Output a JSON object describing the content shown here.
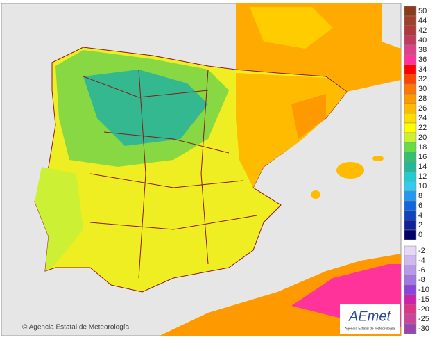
{
  "legend": {
    "positive": [
      {
        "label": "50",
        "color": "#8b3a1a"
      },
      {
        "label": "44",
        "color": "#a0402a"
      },
      {
        "label": "42",
        "color": "#b03a3a"
      },
      {
        "label": "40",
        "color": "#c03c5c"
      },
      {
        "label": "38",
        "color": "#e0408a"
      },
      {
        "label": "36",
        "color": "#ff3399"
      },
      {
        "label": "34",
        "color": "#ff0000"
      },
      {
        "label": "32",
        "color": "#ff4400"
      },
      {
        "label": "30",
        "color": "#ff7700"
      },
      {
        "label": "28",
        "color": "#ff9900"
      },
      {
        "label": "26",
        "color": "#ffbb00"
      },
      {
        "label": "24",
        "color": "#ffdd00"
      },
      {
        "label": "22",
        "color": "#ffff00"
      },
      {
        "label": "20",
        "color": "#ccf033"
      },
      {
        "label": "18",
        "color": "#66dd44"
      },
      {
        "label": "16",
        "color": "#33c070"
      },
      {
        "label": "14",
        "color": "#22b89a"
      },
      {
        "label": "12",
        "color": "#22cccc"
      },
      {
        "label": "10",
        "color": "#33ccee"
      },
      {
        "label": "8",
        "color": "#2299ee"
      },
      {
        "label": "6",
        "color": "#1166dd"
      },
      {
        "label": "4",
        "color": "#1144bb"
      },
      {
        "label": "2",
        "color": "#112299"
      },
      {
        "label": "0",
        "color": "#000066"
      }
    ],
    "negative": [
      {
        "label": "-2",
        "color": "#e8d8f8"
      },
      {
        "label": "-4",
        "color": "#d0b8f0"
      },
      {
        "label": "-6",
        "color": "#b898e8"
      },
      {
        "label": "-8",
        "color": "#a078e0"
      },
      {
        "label": "-10",
        "color": "#8844dd"
      },
      {
        "label": "-15",
        "color": "#cc22aa"
      },
      {
        "label": "-20",
        "color": "#dd3388"
      },
      {
        "label": "-25",
        "color": "#cc4499"
      },
      {
        "label": "-30",
        "color": "#9944aa"
      }
    ]
  },
  "credit": "© Agencia Estatal de Meteorología",
  "logo": {
    "name": "AEmet",
    "subtitle": "Agencia Estatal de Meteorología"
  }
}
